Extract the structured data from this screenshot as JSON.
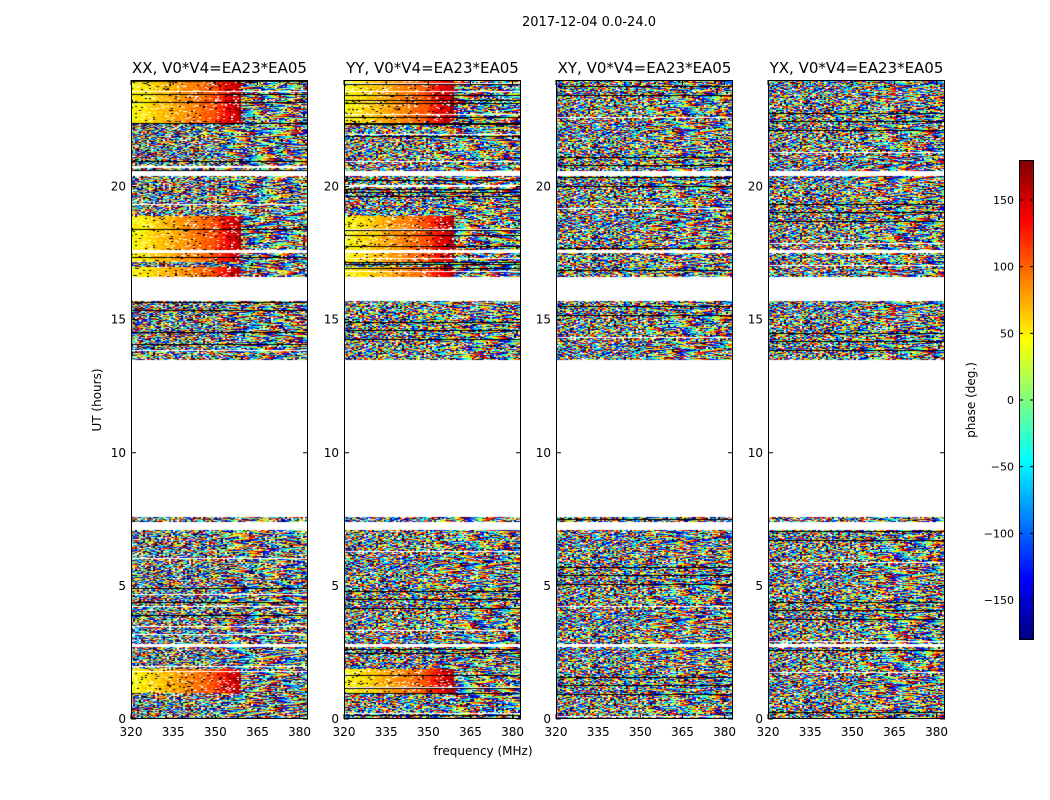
{
  "chart_data": {
    "type": "heatmap",
    "title": "2017-12-04 0.0-24.0",
    "xlabel": "frequency (MHz)",
    "ylabel": "UT (hours)",
    "xlim": [
      320,
      383
    ],
    "ylim": [
      0,
      24
    ],
    "x_ticks": [
      "320",
      "335",
      "350",
      "365",
      "380"
    ],
    "y_ticks": [
      "0",
      "5",
      "10",
      "15",
      "20"
    ],
    "panels": [
      {
        "title": "XX, V0*V4=EA23*EA05",
        "pol": "XX",
        "coherent": true
      },
      {
        "title": "YY, V0*V4=EA23*EA05",
        "pol": "YY",
        "coherent": true
      },
      {
        "title": "XY, V0*V4=EA23*EA05",
        "pol": "XY",
        "coherent": false
      },
      {
        "title": "YX, V0*V4=EA23*EA05",
        "pol": "YX",
        "coherent": false
      }
    ],
    "data_time_ranges_hours": [
      [
        0.0,
        2.7
      ],
      [
        2.8,
        7.1
      ],
      [
        7.4,
        7.6
      ],
      [
        13.5,
        15.7
      ],
      [
        16.6,
        17.5
      ],
      [
        17.6,
        20.4
      ],
      [
        20.6,
        24.0
      ]
    ],
    "colorbar": {
      "label": "phase (deg.)",
      "range": [
        -180,
        180
      ],
      "ticks": [
        "150",
        "100",
        "50",
        "0",
        "−50",
        "−100",
        "−150"
      ],
      "colormap": "jet"
    }
  }
}
